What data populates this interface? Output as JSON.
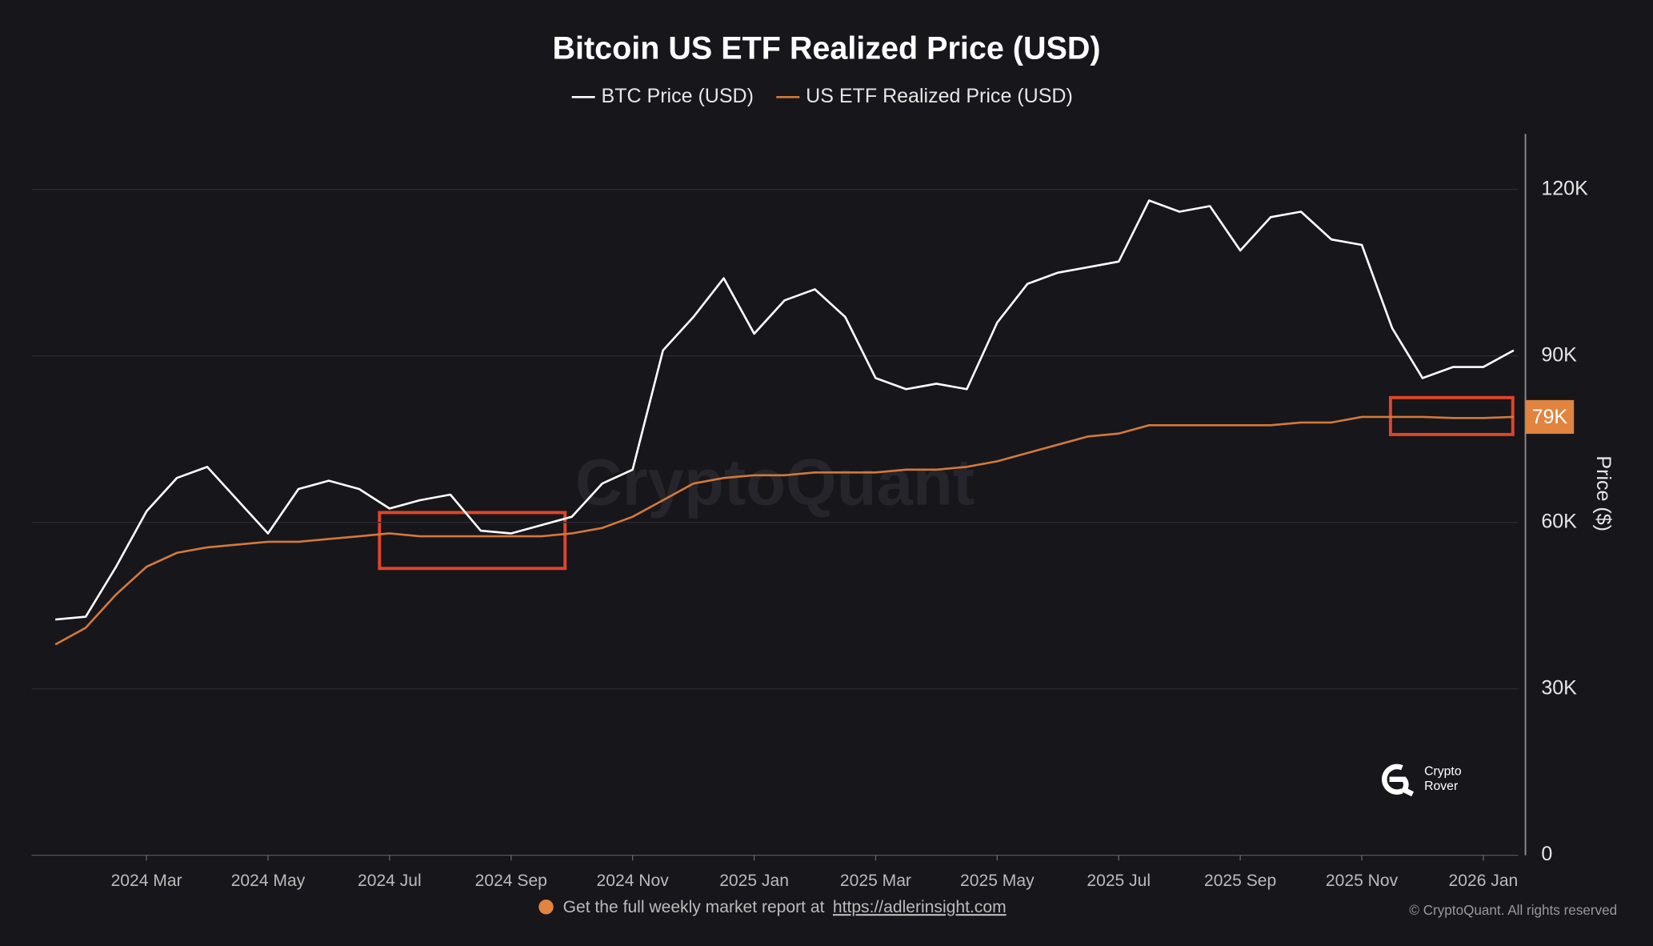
{
  "chart_data": {
    "type": "line",
    "title": "Bitcoin US ETF Realized Price (USD)",
    "y_label": "Price ($)",
    "categories": [
      null,
      null,
      null,
      "2024 Mar",
      null,
      null,
      null,
      "2024 May",
      null,
      null,
      null,
      "2024 Jul",
      null,
      null,
      null,
      "2024 Sep",
      null,
      null,
      null,
      "2024 Nov",
      null,
      null,
      null,
      "2025 Jan",
      null,
      null,
      null,
      "2025 Mar",
      null,
      null,
      null,
      "2025 May",
      null,
      null,
      null,
      "2025 Jul",
      null,
      null,
      null,
      "2025 Sep",
      null,
      null,
      null,
      "2025 Nov",
      null,
      null,
      null,
      "2026 Jan",
      null
    ],
    "series": [
      {
        "name": "BTC Price (USD)",
        "color": "#ffffff",
        "values": [
          42500,
          43000,
          52000,
          62000,
          68000,
          70000,
          64000,
          58000,
          66000,
          67500,
          66000,
          62500,
          64000,
          65000,
          58500,
          58000,
          59500,
          61000,
          67000,
          69500,
          91000,
          97000,
          104000,
          94000,
          100000,
          102000,
          97000,
          86000,
          84000,
          85000,
          84000,
          96000,
          103000,
          105000,
          106000,
          107000,
          118000,
          116000,
          117000,
          109000,
          115000,
          116000,
          111000,
          110000,
          95000,
          86000,
          88000,
          88000,
          91000
        ]
      },
      {
        "name": "US ETF Realized Price (USD)",
        "color": "#d2793a",
        "values": [
          38000,
          41000,
          47000,
          52000,
          54500,
          55500,
          56000,
          56500,
          56500,
          57000,
          57500,
          58000,
          57500,
          57500,
          57500,
          57500,
          57500,
          58000,
          59000,
          61000,
          64000,
          67000,
          68000,
          68500,
          68500,
          69000,
          69000,
          69000,
          69500,
          69500,
          70000,
          71000,
          72500,
          74000,
          75500,
          76000,
          77500,
          77500,
          77500,
          77500,
          77500,
          78000,
          78000,
          79000,
          79000,
          79000,
          78800,
          78800,
          79000
        ]
      }
    ],
    "current": {
      "value": 79000,
      "label": "79K"
    },
    "ylim": [
      0,
      130000
    ],
    "yticks": [
      0,
      {
        "value": 30000,
        "label": "30K"
      },
      {
        "value": 60000,
        "label": "60K"
      },
      {
        "value": 90000,
        "label": "90K"
      },
      {
        "value": 120000,
        "label": "120K"
      }
    ],
    "grid": true,
    "watermark": "CryptoQuant",
    "logo": [
      "Crypto",
      "Rover"
    ],
    "footer": {
      "text": "Get the full weekly market report at",
      "link": "https://adlerinsight.com",
      "copyright": "© CryptoQuant. All rights reserved"
    }
  }
}
